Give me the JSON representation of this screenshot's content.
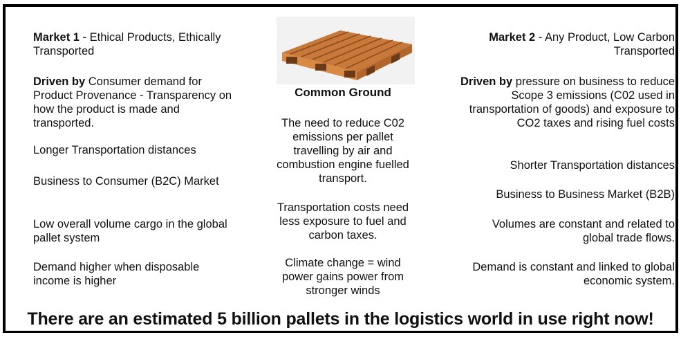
{
  "left": {
    "heading_bold": "Market 1",
    "heading_rest": "- Ethical Products, Ethically Transported",
    "driven_bold": "Driven by",
    "driven_rest": "Consumer demand for Product Provenance - Transparency on how the product is made and transported.",
    "items": [
      "Longer Transportation distances",
      "Business to Consumer (B2C) Market",
      "Low overall volume cargo in the global pallet system",
      "Demand higher when disposable income is higher"
    ]
  },
  "center": {
    "title": "Common Ground",
    "items": [
      "The need to reduce C02 emissions per pallet travelling by air and combustion engine fuelled transport.",
      "Transportation costs need less exposure to fuel and carbon taxes.",
      "Climate change = wind power gains power from stronger winds"
    ]
  },
  "right": {
    "heading_bold": "Market 2",
    "heading_rest": "- Any Product, Low Carbon Transported",
    "driven_bold": "Driven by",
    "driven_rest": "pressure on business to reduce Scope 3 emissions (C02 used in transportation of goods) and exposure to CO2 taxes and rising fuel costs",
    "items": [
      "Shorter Transportation distances",
      "Business to Business Market (B2B)",
      "Volumes are constant and related to global trade flows.",
      "Demand is constant and linked to global economic system."
    ]
  },
  "footer": "There are an estimated 5 billion pallets in the logistics world in use right now!"
}
